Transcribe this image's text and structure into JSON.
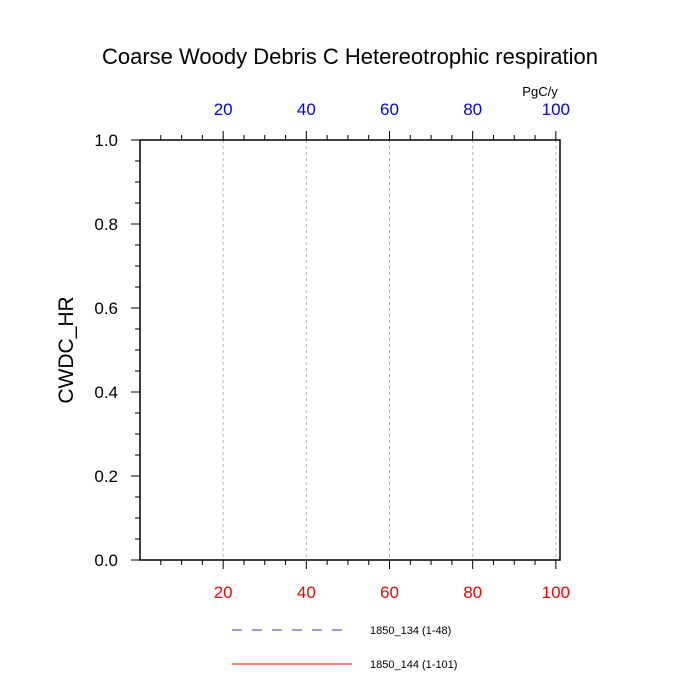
{
  "chart_data": {
    "type": "line",
    "title": "Coarse Woody Debris C Hetereotrophic respiration",
    "ylabel": "CWDC_HR",
    "units_label": "PgC/y",
    "xlim": [
      0,
      101
    ],
    "ylim": [
      0,
      1.0
    ],
    "x_ticks": [
      "20",
      "40",
      "60",
      "80",
      "100"
    ],
    "y_ticks": [
      "0.0",
      "0.2",
      "0.4",
      "0.6",
      "0.8",
      "1.0"
    ],
    "grid": "vertical-dashed",
    "series": [
      {
        "name": "1850_134 (1-48)",
        "color": "#3333cc",
        "dash": "dashed",
        "x": [
          1,
          48
        ],
        "y": [
          0,
          0
        ]
      },
      {
        "name": "1850_144 (1-101)",
        "color": "#ff0000",
        "dash": "solid",
        "x": [
          1,
          101
        ],
        "y": [
          0,
          0
        ]
      }
    ],
    "top_axis_color": "#0000ff",
    "bottom_axis_color": "#ff0000"
  }
}
